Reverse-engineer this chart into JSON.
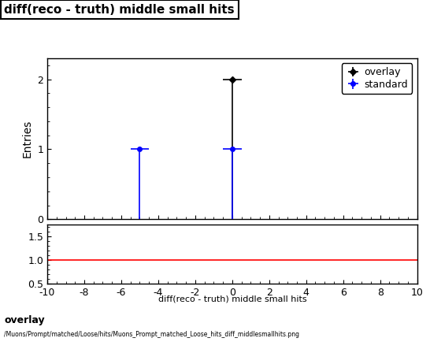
{
  "title": "diff(reco - truth) middle small hits",
  "xlabel": "diff(reco - truth) middle small hits",
  "ylabel_main": "Entries",
  "xlim": [
    -10,
    10
  ],
  "ylim_main": [
    0,
    2.3
  ],
  "ylim_ratio": [
    0.5,
    1.75
  ],
  "ratio_yticks": [
    0.5,
    1.0,
    1.5
  ],
  "overlay_x": [
    0
  ],
  "overlay_y": [
    2
  ],
  "overlay_xerr": [
    0.5
  ],
  "overlay_yerr_lo": [
    2
  ],
  "overlay_yerr_hi": [
    0
  ],
  "overlay_color": "#000000",
  "overlay_label": "overlay",
  "standard_x1": [
    -5
  ],
  "standard_y1": [
    1
  ],
  "standard_xerr1": [
    0.5
  ],
  "standard_yerr_lo1": [
    1
  ],
  "standard_yerr_hi1": [
    0
  ],
  "standard_x2": [
    0
  ],
  "standard_y2": [
    1
  ],
  "standard_xerr2": [
    0.5
  ],
  "standard_yerr_lo2": [
    1
  ],
  "standard_yerr_hi2": [
    0
  ],
  "standard_color": "#0000ff",
  "standard_label": "standard",
  "ratio_line_color": "#ff0000",
  "ratio_line_y": 1.0,
  "footer_text1": "overlay",
  "footer_text2": "/Muons/Prompt/matched/Loose/hits/Muons_Prompt_matched_Loose_hits_diff_middlesmallhits.png",
  "main_xticks": [
    -10,
    -8,
    -6,
    -4,
    -2,
    0,
    2,
    4,
    6,
    8,
    10
  ],
  "main_yticks": [
    0,
    1,
    2
  ],
  "background_color": "#ffffff",
  "title_fontsize": 11,
  "tick_fontsize": 9,
  "legend_fontsize": 9,
  "ylabel_fontsize": 10
}
